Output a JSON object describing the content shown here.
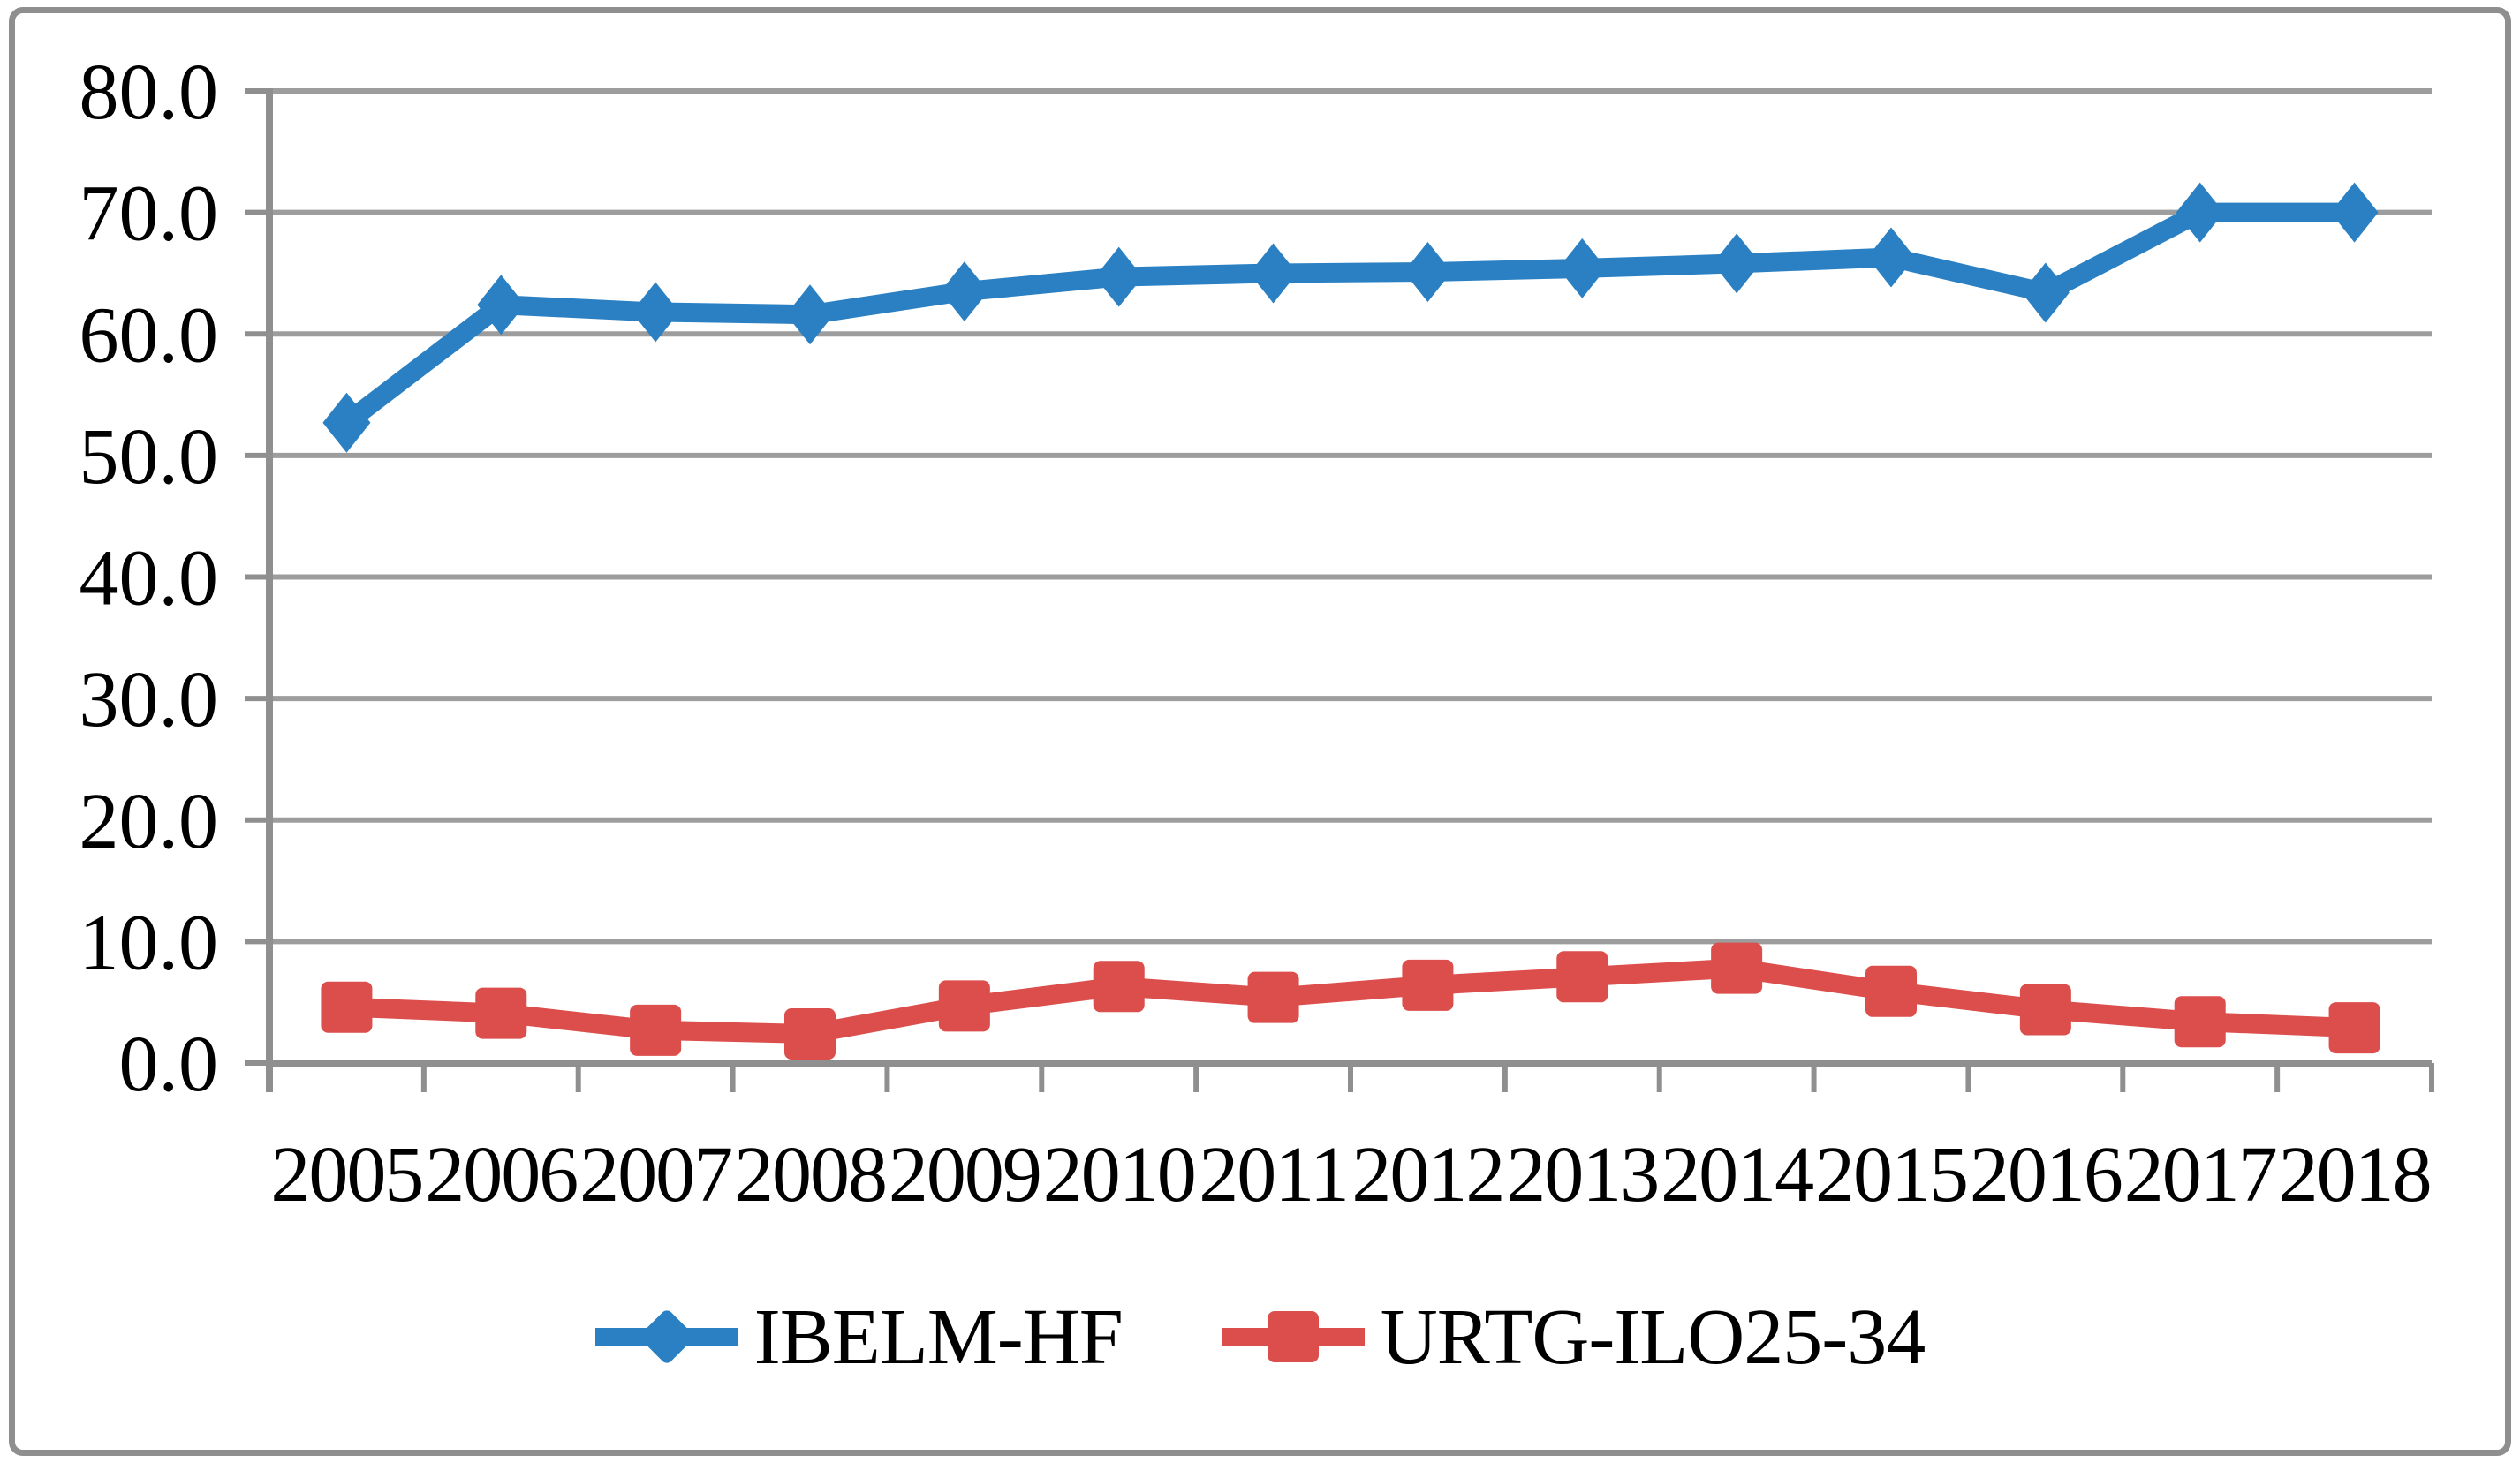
{
  "figure": {
    "background": "#ffffff",
    "border_color": "#8f8f8f"
  },
  "chart_data": {
    "type": "line",
    "title": "",
    "xlabel": "",
    "ylabel": "",
    "categories": [
      "2005",
      "2006",
      "2007",
      "2008",
      "2009",
      "2010",
      "2011",
      "2012",
      "2013",
      "2014",
      "2015",
      "2016",
      "2017",
      "2018"
    ],
    "series": [
      {
        "name": "IBELM-HF",
        "color": "#2a80c2",
        "marker": "diamond",
        "values": [
          52.7,
          62.4,
          61.8,
          61.6,
          63.5,
          64.7,
          65.0,
          65.1,
          65.4,
          65.8,
          66.3,
          63.4,
          70.0,
          70.0
        ]
      },
      {
        "name": "URTG-ILO25-34",
        "color": "#dc4e4b",
        "marker": "square",
        "values": [
          4.6,
          4.1,
          2.7,
          2.4,
          4.7,
          6.3,
          5.4,
          6.4,
          7.1,
          7.8,
          5.9,
          4.4,
          3.4,
          2.9
        ]
      }
    ],
    "ylim": [
      0,
      80
    ],
    "y_tick_step": 10,
    "y_tick_labels": [
      "0.0",
      "10.0",
      "20.0",
      "30.0",
      "40.0",
      "50.0",
      "60.0",
      "70.0",
      "80.0"
    ],
    "grid": true,
    "grid_color": "#9d9d9d",
    "axis_color": "#8f8f8f",
    "text_color": "#000000",
    "legend_position": "bottom"
  }
}
